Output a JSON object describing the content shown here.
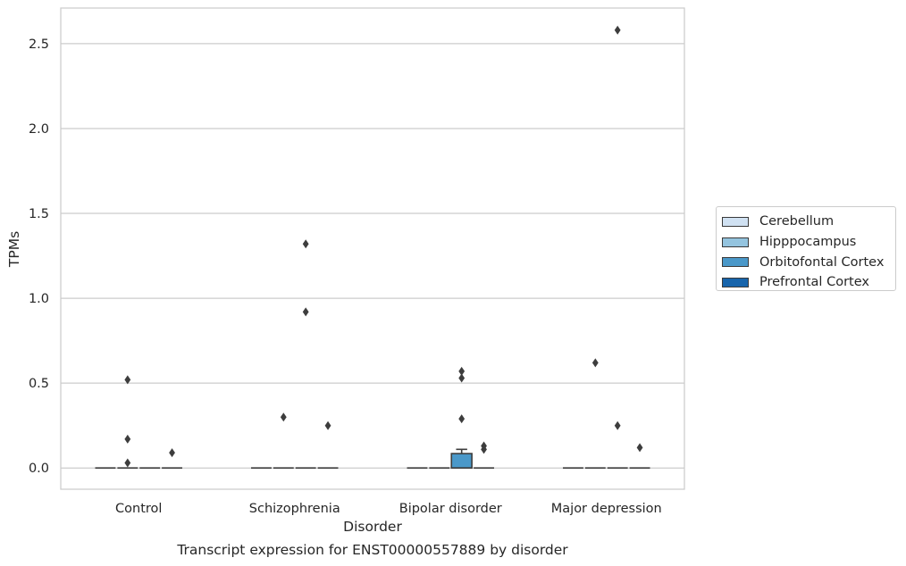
{
  "chart_data": {
    "type": "box",
    "title": "",
    "caption": "Transcript expression for ENST00000557889 by disorder",
    "xlabel": "Disorder",
    "ylabel": "TPMs",
    "ylim": [
      -0.125,
      2.71
    ],
    "yticks": [
      "0.0",
      "0.5",
      "1.0",
      "1.5",
      "2.0",
      "2.5"
    ],
    "ytick_values": [
      0,
      0.5,
      1.0,
      1.5,
      2.0,
      2.5
    ],
    "grid": true,
    "legend_position": "right",
    "categories": [
      "Control",
      "Schizophrenia",
      "Bipolar disorder",
      "Major depression"
    ],
    "series": [
      {
        "name": "Cerebellum",
        "color": "#d0e1f2",
        "boxes": [
          {
            "q1": 0,
            "median": 0,
            "q3": 0,
            "whisker_low": 0,
            "whisker_high": 0,
            "outliers": []
          },
          {
            "q1": 0,
            "median": 0,
            "q3": 0,
            "whisker_low": 0,
            "whisker_high": 0,
            "outliers": []
          },
          {
            "q1": 0,
            "median": 0,
            "q3": 0,
            "whisker_low": 0,
            "whisker_high": 0,
            "outliers": []
          },
          {
            "q1": 0,
            "median": 0,
            "q3": 0,
            "whisker_low": 0,
            "whisker_high": 0,
            "outliers": []
          }
        ]
      },
      {
        "name": "Hipppocampus",
        "color": "#94c4df",
        "boxes": [
          {
            "q1": 0,
            "median": 0,
            "q3": 0,
            "whisker_low": 0,
            "whisker_high": 0,
            "outliers": [
              0.52,
              0.17,
              0.03
            ]
          },
          {
            "q1": 0,
            "median": 0,
            "q3": 0,
            "whisker_low": 0,
            "whisker_high": 0,
            "outliers": [
              0.3
            ]
          },
          {
            "q1": 0,
            "median": 0,
            "q3": 0,
            "whisker_low": 0,
            "whisker_high": 0,
            "outliers": []
          },
          {
            "q1": 0,
            "median": 0,
            "q3": 0,
            "whisker_low": 0,
            "whisker_high": 0,
            "outliers": [
              0.62
            ]
          }
        ]
      },
      {
        "name": "Orbitofontal Cortex",
        "color": "#4a98c9",
        "boxes": [
          {
            "q1": 0,
            "median": 0,
            "q3": 0,
            "whisker_low": 0,
            "whisker_high": 0,
            "outliers": []
          },
          {
            "q1": 0,
            "median": 0,
            "q3": 0,
            "whisker_low": 0,
            "whisker_high": 0,
            "outliers": [
              1.32,
              0.92
            ]
          },
          {
            "q1": 0,
            "median": 0,
            "q3": 0.085,
            "whisker_low": 0,
            "whisker_high": 0.11,
            "outliers": [
              0.57,
              0.53,
              0.29
            ]
          },
          {
            "q1": 0,
            "median": 0,
            "q3": 0,
            "whisker_low": 0,
            "whisker_high": 0,
            "outliers": [
              2.58,
              0.25
            ]
          }
        ]
      },
      {
        "name": "Prefrontal Cortex",
        "color": "#1764ab",
        "boxes": [
          {
            "q1": 0,
            "median": 0,
            "q3": 0,
            "whisker_low": 0,
            "whisker_high": 0,
            "outliers": [
              0.09
            ]
          },
          {
            "q1": 0,
            "median": 0,
            "q3": 0,
            "whisker_low": 0,
            "whisker_high": 0,
            "outliers": [
              0.25
            ]
          },
          {
            "q1": 0,
            "median": 0,
            "q3": 0,
            "whisker_low": 0,
            "whisker_high": 0,
            "outliers": [
              0.13,
              0.11
            ]
          },
          {
            "q1": 0,
            "median": 0,
            "q3": 0,
            "whisker_low": 0,
            "whisker_high": 0,
            "outliers": [
              0.12
            ]
          }
        ]
      }
    ]
  }
}
